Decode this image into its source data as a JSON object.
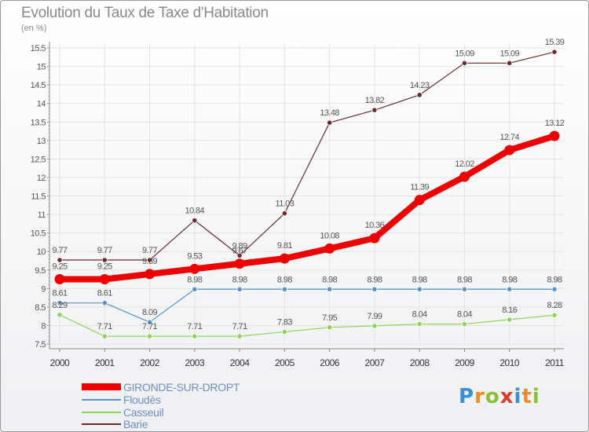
{
  "title": "Evolution du Taux de Taxe d'Habitation",
  "subtitle": "(en %)",
  "logo": {
    "text": "Proxiti",
    "colors": [
      "#3a8fd6",
      "#f08a24",
      "#8bbf3a",
      "#e23a2a",
      "#3a8fd6",
      "#f08a24",
      "#8bbf3a"
    ]
  },
  "chart_data": {
    "type": "line",
    "title": "Evolution du Taux de Taxe d'Habitation",
    "ylabel": "(en %)",
    "ylim": [
      7.5,
      15.5
    ],
    "y_ticks": [
      "7.5",
      "8",
      "8.5",
      "9",
      "9.5",
      "10",
      "10.5",
      "11",
      "11.5",
      "12",
      "12.5",
      "13",
      "13.5",
      "14",
      "14.5",
      "15",
      "15.5"
    ],
    "categories": [
      "2000",
      "2001",
      "2002",
      "2003",
      "2004",
      "2005",
      "2006",
      "2007",
      "2008",
      "2009",
      "2010",
      "2011"
    ],
    "grid": true,
    "legend_position": "bottom-left",
    "series": [
      {
        "name": "GIRONDE-SUR-DROPT",
        "color": "#ee0000",
        "values": [
          9.25,
          9.25,
          9.39,
          9.53,
          9.67,
          9.81,
          10.08,
          10.36,
          11.39,
          12.02,
          12.74,
          13.12
        ],
        "labels": [
          "9.25",
          "9.25",
          "9.39",
          "9.53",
          "9.67",
          "9.81",
          "10.08",
          "10.36",
          "11.39",
          "12.02",
          "12.74",
          "13.12"
        ]
      },
      {
        "name": "Floudès",
        "color": "#5a93c8",
        "values": [
          8.61,
          8.61,
          8.09,
          8.98,
          8.98,
          8.98,
          8.98,
          8.98,
          8.98,
          8.98,
          8.98,
          8.98
        ],
        "labels": [
          "8.61",
          "8.61",
          "8.09",
          "8.98",
          "8.98",
          "8.98",
          "8.98",
          "8.98",
          "8.98",
          "8.98",
          "8.98",
          "8.98"
        ]
      },
      {
        "name": "Casseuil",
        "color": "#8fd45a",
        "values": [
          8.29,
          7.71,
          7.71,
          7.71,
          7.71,
          7.83,
          7.95,
          7.99,
          8.04,
          8.04,
          8.16,
          8.28
        ],
        "labels": [
          "8.29",
          "7.71",
          "7.71",
          "7.71",
          "7.71",
          "7.83",
          "7.95",
          "7.99",
          "8.04",
          "8.04",
          "8.16",
          "8.28"
        ]
      },
      {
        "name": "Barie",
        "color": "#6e2a2a",
        "values": [
          9.77,
          9.77,
          9.77,
          10.84,
          9.89,
          11.03,
          13.48,
          13.82,
          14.23,
          15.09,
          15.09,
          15.39
        ],
        "labels": [
          "9.77",
          "9.77",
          "9.77",
          "10.84",
          "9.89",
          "11.03",
          "13.48",
          "13.82",
          "14.23",
          "15.09",
          "15.09",
          "15.39"
        ]
      }
    ]
  }
}
